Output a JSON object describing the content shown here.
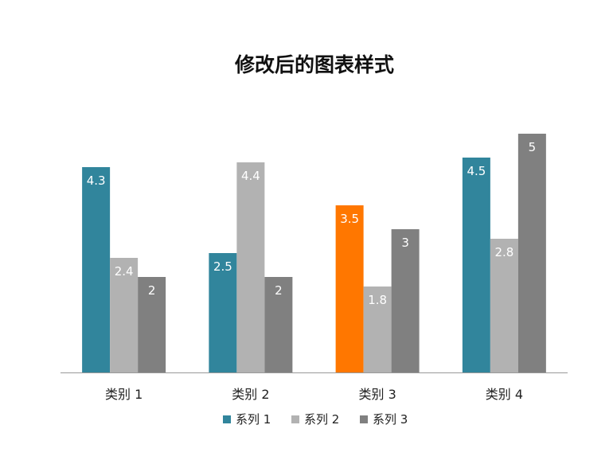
{
  "chart_data": {
    "type": "bar",
    "title": "修改后的图表样式",
    "categories": [
      "类别 1",
      "类别 2",
      "类别 3",
      "类别 4"
    ],
    "series": [
      {
        "name": "系列 1",
        "values": [
          4.3,
          2.5,
          3.5,
          4.5
        ],
        "color": "#31859C"
      },
      {
        "name": "系列 2",
        "values": [
          2.4,
          4.4,
          1.8,
          2.8
        ],
        "color": "#B2B2B2"
      },
      {
        "name": "系列 3",
        "values": [
          2,
          2,
          3,
          5
        ],
        "color": "#808080"
      }
    ],
    "highlight": {
      "series": 0,
      "category": 2,
      "color": "#FF7700"
    },
    "ylim": [
      0,
      5
    ],
    "grid": false,
    "legend": "bottom",
    "data_labels": true
  }
}
